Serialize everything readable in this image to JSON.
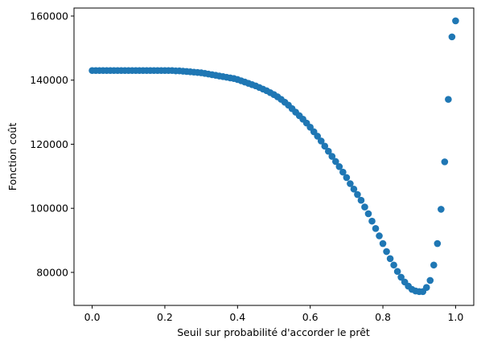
{
  "chart_data": {
    "type": "scatter",
    "xlabel": "Seuil sur probabilité d'accorder le prêt",
    "ylabel": "Fonction coût",
    "color": "#1f77b4",
    "x": [
      0,
      0.01,
      0.02,
      0.03,
      0.04,
      0.05,
      0.06,
      0.07,
      0.08,
      0.09,
      0.1,
      0.11,
      0.12,
      0.13,
      0.14,
      0.15,
      0.16,
      0.17,
      0.18,
      0.19,
      0.2,
      0.21,
      0.22,
      0.23,
      0.24,
      0.25,
      0.26,
      0.27,
      0.28,
      0.29,
      0.3,
      0.31,
      0.32,
      0.33,
      0.34,
      0.35,
      0.36,
      0.37,
      0.38,
      0.39,
      0.4,
      0.41,
      0.42,
      0.43,
      0.44,
      0.45,
      0.46,
      0.47,
      0.48,
      0.49,
      0.5,
      0.51,
      0.52,
      0.53,
      0.54,
      0.55,
      0.56,
      0.57,
      0.58,
      0.59,
      0.6,
      0.61,
      0.62,
      0.63,
      0.64,
      0.65,
      0.66,
      0.67,
      0.68,
      0.69,
      0.7,
      0.71,
      0.72,
      0.73,
      0.74,
      0.75,
      0.76,
      0.77,
      0.78,
      0.79,
      0.8,
      0.81,
      0.82,
      0.83,
      0.84,
      0.85,
      0.86,
      0.87,
      0.88,
      0.89,
      0.9,
      0.91,
      0.92,
      0.93,
      0.94,
      0.95,
      0.96,
      0.97,
      0.98,
      0.99,
      1
    ],
    "values": [
      143000,
      143000,
      143000,
      143000,
      143000,
      143000,
      143000,
      143000,
      143000,
      143000,
      143000,
      143000,
      143000,
      143000,
      143000,
      143000,
      143000,
      143000,
      143000,
      143000,
      143000,
      143000,
      143000,
      142900,
      142900,
      142800,
      142700,
      142600,
      142500,
      142400,
      142300,
      142100,
      141900,
      141700,
      141500,
      141300,
      141100,
      140900,
      140700,
      140500,
      140200,
      139800,
      139400,
      139000,
      138600,
      138200,
      137700,
      137200,
      136700,
      136100,
      135500,
      134800,
      134000,
      133100,
      132200,
      131100,
      130000,
      128900,
      127800,
      126600,
      125300,
      123900,
      122500,
      121000,
      119400,
      117800,
      116200,
      114600,
      113000,
      111300,
      109600,
      107700,
      106000,
      104300,
      102500,
      100400,
      98300,
      96000,
      93700,
      91400,
      89000,
      86500,
      84300,
      82300,
      80300,
      78500,
      77000,
      75700,
      74700,
      74200,
      74000,
      74000,
      75300,
      77500,
      82300,
      89000,
      99700,
      114500,
      134000,
      153500,
      158500
    ],
    "xlim": [
      -0.05,
      1.05
    ],
    "ylim": [
      69700,
      162500
    ],
    "xticks": [
      {
        "value": 0,
        "label": "0.0"
      },
      0.2,
      0.4,
      0.6,
      0.8,
      {
        "value": 1,
        "label": "1.0"
      }
    ],
    "yticks": [
      80000,
      100000,
      120000,
      140000,
      160000
    ]
  }
}
